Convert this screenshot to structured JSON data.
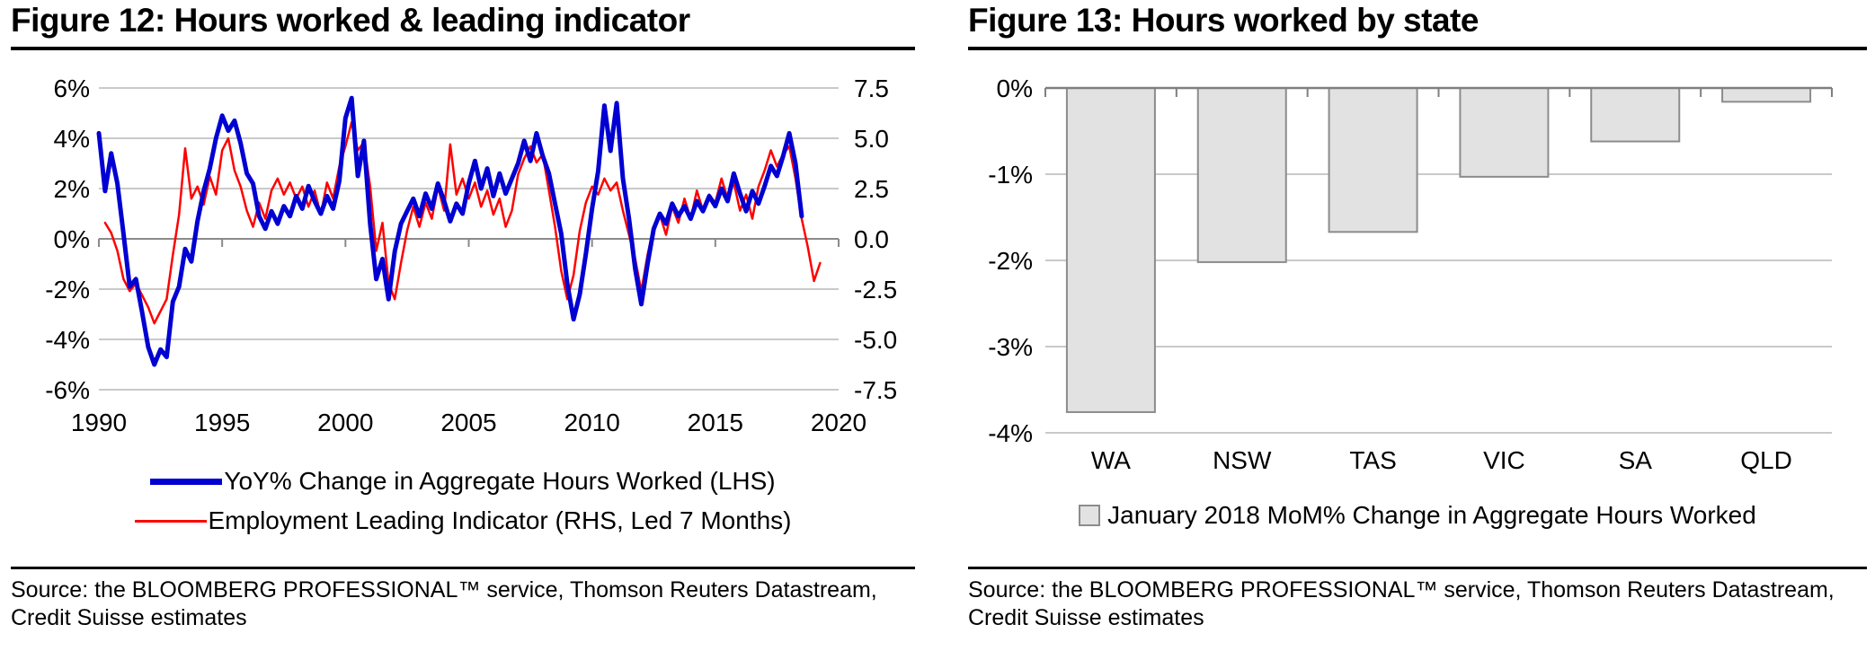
{
  "left_panel": {
    "title": "Figure 12: Hours worked & leading indicator",
    "source_line1": "Source: the BLOOMBERG PROFESSIONAL™ service, Thomson Reuters Datastream,",
    "source_line2": "Credit Suisse estimates"
  },
  "right_panel": {
    "title": "Figure 13: Hours worked by state",
    "source_line1": "Source: the BLOOMBERG PROFESSIONAL™ service, Thomson Reuters Datastream,",
    "source_line2": "Credit Suisse estimates"
  },
  "chart_data": [
    {
      "type": "line",
      "title": "Figure 12: Hours worked & leading indicator",
      "x_ticks": [
        1990,
        1995,
        2000,
        2005,
        2010,
        2015,
        2020
      ],
      "x_range": [
        1990,
        2020
      ],
      "grid": true,
      "legend_position": "bottom",
      "left_axis": {
        "range": [
          -6,
          6
        ],
        "ticks": [
          {
            "v": 6,
            "label": "6%"
          },
          {
            "v": 4,
            "label": "4%"
          },
          {
            "v": 2,
            "label": "2%"
          },
          {
            "v": 0,
            "label": "0%"
          },
          {
            "v": -2,
            "label": "-2%"
          },
          {
            "v": -4,
            "label": "-4%"
          },
          {
            "v": -6,
            "label": "-6%"
          }
        ]
      },
      "right_axis": {
        "range": [
          -7.5,
          7.5
        ],
        "ticks": [
          {
            "v": 7.5,
            "label": "7.5"
          },
          {
            "v": 5.0,
            "label": "5.0"
          },
          {
            "v": 2.5,
            "label": "2.5"
          },
          {
            "v": 0.0,
            "label": "0.0"
          },
          {
            "v": -2.5,
            "label": "-2.5"
          },
          {
            "v": -5.0,
            "label": "-5.0"
          },
          {
            "v": -7.5,
            "label": "-7.5"
          }
        ]
      },
      "series": [
        {
          "name": "YoY% Change in Aggregate Hours Worked (LHS)",
          "axis": "left",
          "color": "#0000D2",
          "width": 5,
          "x_start": 1990.0,
          "x_step": 0.25,
          "values": [
            4.2,
            1.9,
            3.4,
            2.2,
            0.2,
            -1.9,
            -1.6,
            -2.9,
            -4.3,
            -5.0,
            -4.4,
            -4.7,
            -2.5,
            -1.9,
            -0.4,
            -0.9,
            0.7,
            1.9,
            2.8,
            4.0,
            4.9,
            4.3,
            4.7,
            3.8,
            2.6,
            2.2,
            0.9,
            0.4,
            1.1,
            0.6,
            1.3,
            0.9,
            1.7,
            1.2,
            2.1,
            1.5,
            1.0,
            1.7,
            1.2,
            2.3,
            4.8,
            5.6,
            2.5,
            3.9,
            0.6,
            -1.6,
            -0.8,
            -2.4,
            -0.5,
            0.6,
            1.1,
            1.6,
            0.9,
            1.8,
            1.2,
            2.2,
            1.5,
            0.7,
            1.4,
            1.0,
            2.2,
            3.1,
            2.0,
            2.8,
            1.7,
            2.6,
            1.8,
            2.4,
            3.0,
            3.9,
            3.1,
            4.2,
            3.3,
            2.6,
            1.4,
            0.2,
            -1.8,
            -3.2,
            -2.2,
            -0.6,
            1.2,
            2.7,
            5.3,
            3.5,
            5.4,
            2.4,
            0.8,
            -1.2,
            -2.6,
            -1.0,
            0.4,
            1.0,
            0.6,
            1.4,
            0.9,
            1.3,
            0.8,
            1.5,
            1.1,
            1.7,
            1.3,
            2.0,
            1.5,
            2.6,
            1.8,
            1.1,
            1.9,
            1.4,
            2.1,
            2.9,
            2.5,
            3.3,
            4.2,
            3.0,
            0.9
          ]
        },
        {
          "name": "Employment Leading Indicator (RHS, Led 7 Months)",
          "axis": "right",
          "color": "#FF0000",
          "width": 2.5,
          "x_start": 1990.25,
          "x_step": 0.25,
          "values": [
            0.8,
            0.3,
            -0.6,
            -2.0,
            -2.6,
            -2.2,
            -2.8,
            -3.4,
            -4.2,
            -3.6,
            -3.0,
            -0.8,
            1.2,
            4.5,
            2.0,
            2.6,
            1.7,
            3.1,
            2.2,
            4.4,
            5.0,
            3.4,
            2.6,
            1.4,
            0.6,
            1.8,
            1.0,
            2.4,
            3.0,
            2.2,
            2.8,
            2.0,
            2.6,
            1.6,
            2.4,
            1.2,
            2.8,
            2.0,
            3.6,
            4.6,
            5.8,
            4.4,
            4.8,
            2.6,
            -0.6,
            0.8,
            -2.2,
            -3.0,
            -1.2,
            0.4,
            1.6,
            0.6,
            1.8,
            1.0,
            2.6,
            1.4,
            4.7,
            2.2,
            3.0,
            2.0,
            2.8,
            1.6,
            2.4,
            1.2,
            2.0,
            0.6,
            1.4,
            3.2,
            4.0,
            4.6,
            3.8,
            4.2,
            2.4,
            0.6,
            -1.6,
            -3.0,
            -1.8,
            0.4,
            1.8,
            2.6,
            2.2,
            3.0,
            2.4,
            2.8,
            1.4,
            0.2,
            -1.0,
            -2.6,
            -0.8,
            0.6,
            1.2,
            0.2,
            1.6,
            0.8,
            2.0,
            1.0,
            2.4,
            1.4,
            2.2,
            1.8,
            3.0,
            2.0,
            2.8,
            1.4,
            2.2,
            1.0,
            2.6,
            3.4,
            4.4,
            3.6,
            4.2,
            4.6,
            3.0,
            1.0,
            -0.4,
            -2.1,
            -1.2
          ]
        }
      ],
      "grid_color": "#C9C9C9",
      "zero_line_color": "#8A8A8A"
    },
    {
      "type": "bar",
      "title": "Figure 13: Hours worked by state",
      "categories": [
        "WA",
        "NSW",
        "TAS",
        "VIC",
        "SA",
        "QLD"
      ],
      "values": [
        -3.76,
        -2.02,
        -1.67,
        -1.03,
        -0.62,
        -0.16
      ],
      "ylim": [
        -4,
        0
      ],
      "yticks": [
        {
          "v": 0,
          "label": "0%"
        },
        {
          "v": -1,
          "label": "-1%"
        },
        {
          "v": -2,
          "label": "-2%"
        },
        {
          "v": -3,
          "label": "-3%"
        },
        {
          "v": -4,
          "label": "-4%"
        }
      ],
      "legend": "January 2018 MoM% Change in Aggregate Hours Worked",
      "bar_fill": "#E2E2E2",
      "bar_stroke": "#8C8C8C",
      "axis_color": "#7F7F7F",
      "grid_color": "#C9C9C9",
      "grid": true,
      "legend_position": "bottom"
    }
  ]
}
